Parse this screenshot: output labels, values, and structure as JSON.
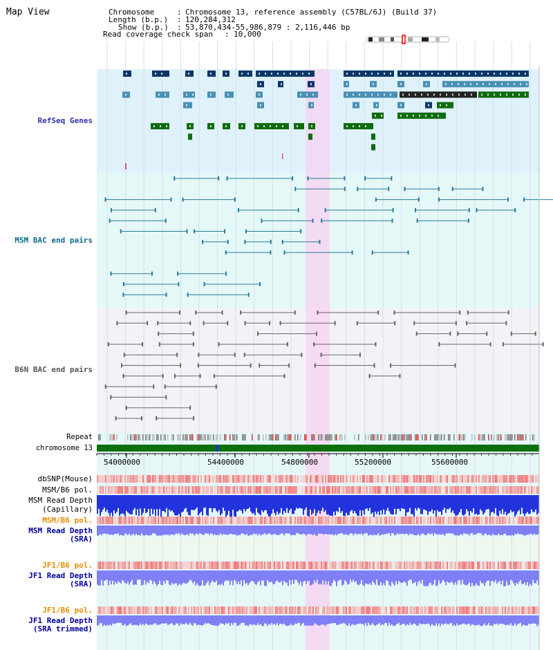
{
  "header": {
    "title": "Map View",
    "chromosome_label": "Chromosome",
    "chromosome_value": "Chromosome 13, reference assembly (C57BL/6J) (Build 37)",
    "length_label": "Length (b.p.)",
    "length_value": "120,284,312",
    "show_label": "Show (b.p.)",
    "show_value": "53,870,434-55,986,879 : 2,116,446 bp",
    "coverage_label": "Read coverage check span",
    "coverage_value": "10,000"
  },
  "tracks": {
    "refseq": "RefSeq Genes",
    "msm_bac": "MSM BAC end pairs",
    "b6n_bac": "B6N BAC end pairs",
    "repeat": "Repeat",
    "chromosome": "chromosome 13",
    "dbsnp": "dbSNP(Mouse)",
    "msm_b6_pol_1": "MSM/B6 pol.",
    "msm_depth_cap_1": "MSM Read Depth",
    "msm_depth_cap_2": "(Capillary)",
    "msm_b6_pol_2": "MSM/B6 pol.",
    "msm_depth_sra_1": "MSM Read Depth",
    "msm_depth_sra_2": "(SRA)",
    "jf1_b6_pol_1": "JF1/B6 pol.",
    "jf1_depth_sra_1": "JF1 Read Depth",
    "jf1_depth_sra_2": "(SRA)",
    "jf1_b6_pol_2": "JF1/B6 pol.",
    "jf1_depth_trim_1": "JF1 Read Depth",
    "jf1_depth_trim_2": "(SRA trimmed)"
  },
  "axis": {
    "ticks": [
      "54000000",
      "54400000",
      "54800000",
      "55200000",
      "55600000"
    ]
  },
  "colors": {
    "refseq_bg": "#dff2fb",
    "highlight": "#f6d6f2",
    "gene_dark": "#0b3768",
    "gene_mid": "#4a8fb4",
    "gene_green": "#0f6b0f",
    "msm_line": "#2a7a9a",
    "b6n_line": "#666666",
    "chrom_green": "#0b700b",
    "depth_blue": "#2233dd",
    "depth_lilac": "#7f80f5",
    "label_blue": "#3333aa",
    "label_orange": "#e88c00",
    "label_navy": "#000099"
  }
}
